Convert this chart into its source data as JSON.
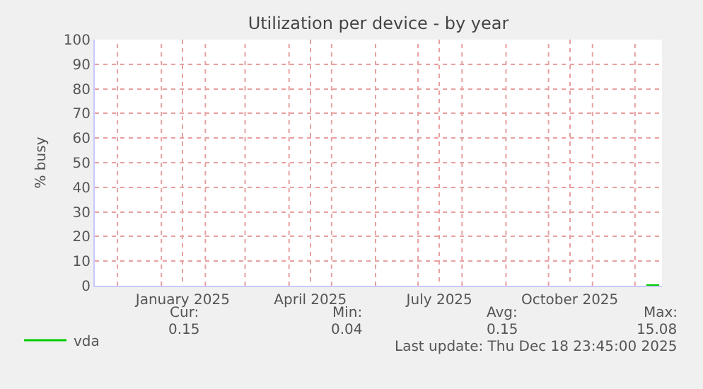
{
  "chart_data": {
    "type": "line",
    "title": "Utilization per device - by year",
    "ylabel": "% busy",
    "x": [
      "2025-12-09",
      "2025-12-10",
      "2025-12-11",
      "2025-12-12",
      "2025-12-13",
      "2025-12-14",
      "2025-12-15",
      "2025-12-16",
      "2025-12-17",
      "2025-12-18"
    ],
    "series": [
      {
        "name": "vda",
        "color": "#00cc00",
        "values": [
          0.15,
          0.15,
          0.15,
          0.15,
          0.15,
          0.15,
          0.15,
          0.15,
          0.15,
          0.15
        ]
      }
    ],
    "xlim": [
      "2024-11-15",
      "2025-12-20"
    ],
    "xticks": [
      {
        "value": "2024-12-01",
        "label": null
      },
      {
        "value": "2025-01-01",
        "label": null
      },
      {
        "value": "2025-01-16",
        "label": "January 2025"
      },
      {
        "value": "2025-02-01",
        "label": null
      },
      {
        "value": "2025-03-01",
        "label": null
      },
      {
        "value": "2025-04-01",
        "label": null
      },
      {
        "value": "2025-04-16",
        "label": "April 2025"
      },
      {
        "value": "2025-05-01",
        "label": null
      },
      {
        "value": "2025-06-01",
        "label": null
      },
      {
        "value": "2025-07-01",
        "label": null
      },
      {
        "value": "2025-07-16",
        "label": "July 2025"
      },
      {
        "value": "2025-08-01",
        "label": null
      },
      {
        "value": "2025-09-01",
        "label": null
      },
      {
        "value": "2025-10-01",
        "label": null
      },
      {
        "value": "2025-10-16",
        "label": "October 2025"
      },
      {
        "value": "2025-11-01",
        "label": null
      },
      {
        "value": "2025-12-01",
        "label": null
      }
    ],
    "ylim": [
      0,
      100
    ],
    "yticks": [
      0,
      10,
      20,
      30,
      40,
      50,
      60,
      70,
      80,
      90,
      100
    ],
    "grid": true,
    "legend": "bottom left",
    "marker": "none",
    "line_style": "solid",
    "annotations": [
      "Cur:",
      "Min:",
      "Avg:",
      "Max:",
      "0.15",
      "0.04",
      "0.15",
      "15.08",
      "Last update: Thu Dec 18 23:45:00 2025"
    ]
  }
}
